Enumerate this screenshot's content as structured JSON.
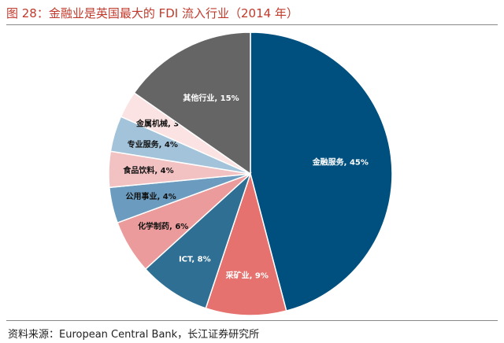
{
  "header": {
    "title": "图 28：金融业是英国最大的 FDI 流入行业（2014 年）"
  },
  "footer": {
    "source": "资料来源：European Central Bank，长江证券研究所"
  },
  "chart_data": {
    "type": "pie",
    "title": "",
    "slices": [
      {
        "label": "金融服务, 45%",
        "value": 45,
        "color": "#00507f",
        "label_color": "#ffffff"
      },
      {
        "label": "采矿业, 9%",
        "value": 9,
        "color": "#e6726f",
        "label_color": "#ffffff"
      },
      {
        "label": "ICT, 8%",
        "value": 8,
        "color": "#2f6f93",
        "label_color": "#ffffff"
      },
      {
        "label": "化学制药, 6%",
        "value": 6,
        "color": "#eb9b9b",
        "label_color": "#111111"
      },
      {
        "label": "公用事业, 4%",
        "value": 4,
        "color": "#6b9cbf",
        "label_color": "#111111"
      },
      {
        "label": "食品饮料, 4%",
        "value": 4,
        "color": "#f2c1c2",
        "label_color": "#111111"
      },
      {
        "label": "专业服务, 4%",
        "value": 4,
        "color": "#a2c3d9",
        "label_color": "#111111"
      },
      {
        "label": "金属机械, 3%",
        "value": 3,
        "color": "#fbe3e3",
        "label_color": "#111111"
      },
      {
        "label": "其他行业, 15%",
        "value": 15,
        "color": "#656565",
        "label_color": "#ffffff"
      }
    ]
  }
}
